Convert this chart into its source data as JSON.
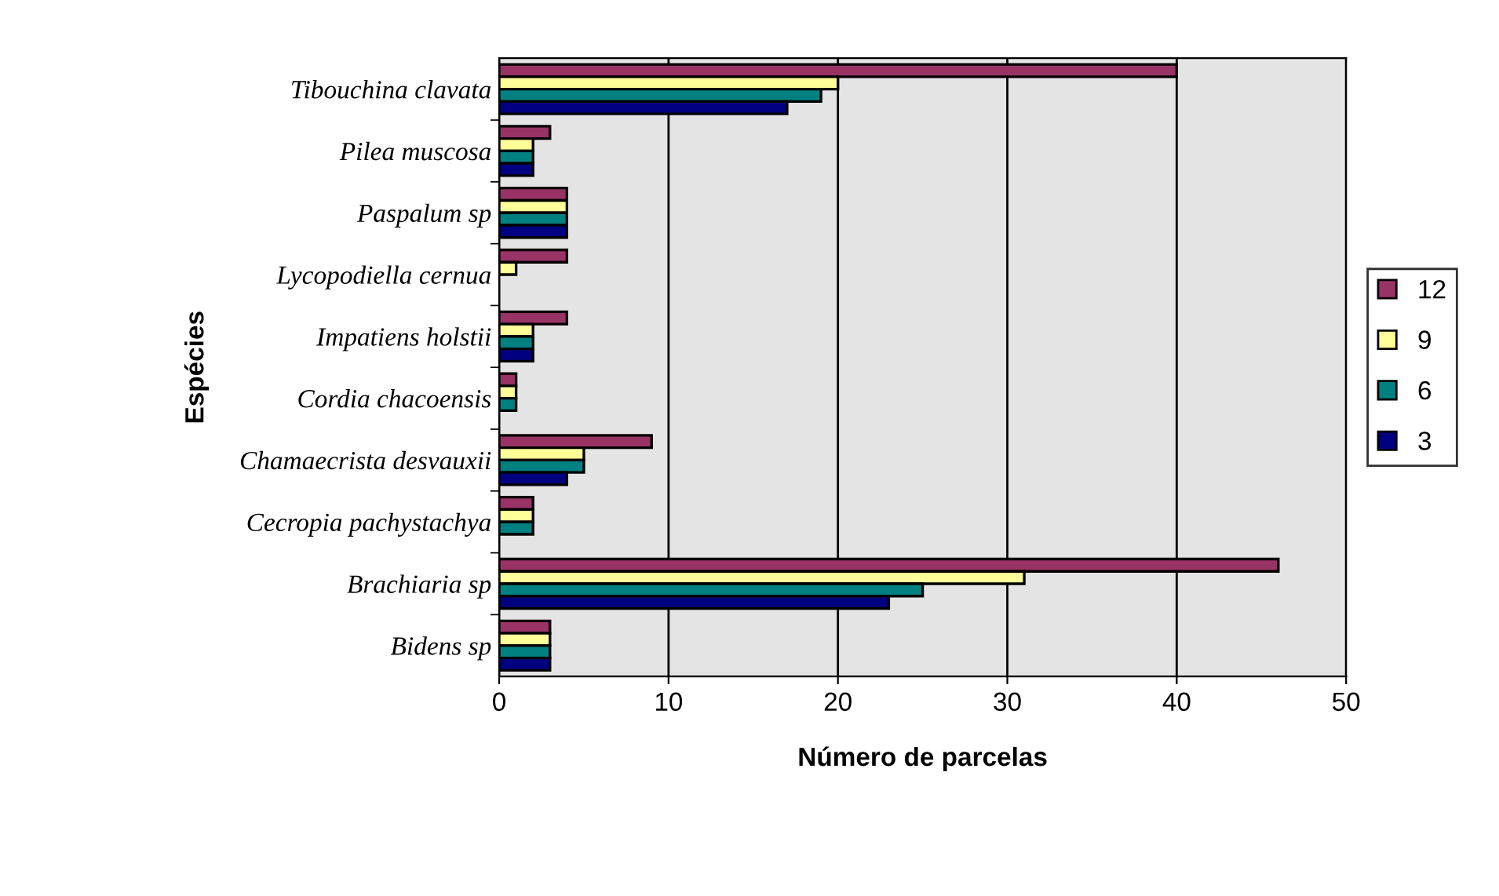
{
  "chart_data": {
    "type": "bar",
    "orientation": "horizontal",
    "xlabel": "Número de parcelas",
    "ylabel": "Espécies",
    "categories": [
      "Tibouchina clavata",
      "Pilea muscosa",
      "Paspalum sp",
      "Lycopodiella cernua",
      "Impatiens holstii",
      "Cordia chacoensis",
      "Chamaecrista desvauxii",
      "Cecropia pachystachya",
      "Brachiaria sp",
      "Bidens sp"
    ],
    "series": [
      {
        "name": "12",
        "color": "#993366",
        "values": [
          40,
          3,
          4,
          4,
          4,
          1,
          9,
          2,
          46,
          3
        ]
      },
      {
        "name": "9",
        "color": "#ffff99",
        "values": [
          20,
          2,
          4,
          1,
          2,
          1,
          5,
          2,
          31,
          3
        ]
      },
      {
        "name": "6",
        "color": "#008080",
        "values": [
          19,
          2,
          4,
          0,
          2,
          1,
          5,
          2,
          25,
          3
        ]
      },
      {
        "name": "3",
        "color": "#000080",
        "values": [
          17,
          2,
          4,
          0,
          2,
          0,
          4,
          0,
          23,
          3
        ]
      }
    ],
    "xlim": [
      0,
      50
    ],
    "xticks": [
      0,
      10,
      20,
      30,
      40,
      50
    ],
    "grid": "x",
    "legend": "right"
  }
}
